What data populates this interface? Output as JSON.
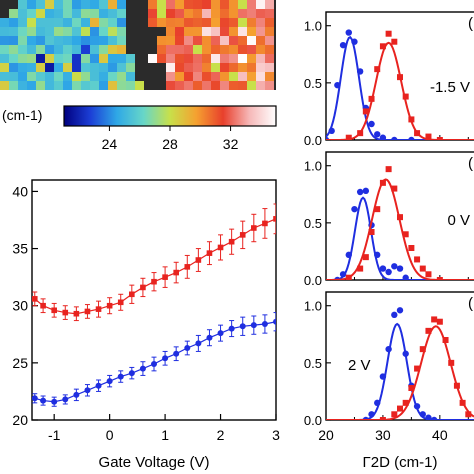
{
  "colorbar": {
    "unit_label": "(cm-1)",
    "ticks": [
      "24",
      "28",
      "32"
    ],
    "tick_values": [
      24,
      28,
      32
    ],
    "range": [
      21,
      35
    ],
    "gradient": [
      "#00007f",
      "#1c3fd6",
      "#2fa8e6",
      "#67d6c8",
      "#c8e04a",
      "#f5a030",
      "#e8402c",
      "#f6b8b8",
      "#ffffff"
    ]
  },
  "colors": {
    "red": "#e8231f",
    "blue": "#1f2ee0",
    "map_bg": "#2b2b2b"
  },
  "chart_data": [
    {
      "type": "line",
      "id": "gate-sweep",
      "xlabel": "Gate Voltage (V)",
      "ylabel": "",
      "xlim": [
        -1.4,
        3
      ],
      "ylim": [
        20,
        41
      ],
      "xticks": [
        "-1",
        "0",
        "1",
        "2",
        "3"
      ],
      "yticks": [
        "20",
        "25",
        "30",
        "35",
        "40"
      ],
      "x": [
        -1.35,
        -1.2,
        -1.0,
        -0.8,
        -0.6,
        -0.4,
        -0.2,
        0.0,
        0.2,
        0.4,
        0.6,
        0.8,
        1.0,
        1.2,
        1.4,
        1.6,
        1.8,
        2.0,
        2.2,
        2.4,
        2.6,
        2.8,
        3.0
      ],
      "series": [
        {
          "color": "red",
          "values": [
            30.6,
            30.0,
            29.6,
            29.4,
            29.3,
            29.5,
            29.7,
            30.0,
            30.3,
            31.0,
            31.6,
            32.1,
            32.5,
            32.9,
            33.4,
            34.0,
            34.6,
            35.1,
            35.6,
            36.2,
            36.8,
            37.2,
            37.6
          ],
          "errors": [
            0.6,
            0.6,
            0.6,
            0.6,
            0.6,
            0.6,
            0.7,
            0.7,
            0.7,
            0.8,
            0.8,
            0.8,
            0.9,
            0.9,
            1.0,
            1.0,
            1.0,
            1.1,
            1.1,
            1.2,
            1.2,
            1.3,
            1.3
          ]
        },
        {
          "color": "blue",
          "values": [
            21.9,
            21.7,
            21.6,
            21.8,
            22.2,
            22.6,
            23.0,
            23.4,
            23.8,
            24.1,
            24.5,
            24.9,
            25.4,
            25.8,
            26.3,
            26.7,
            27.2,
            27.6,
            28.0,
            28.2,
            28.3,
            28.4,
            28.6
          ],
          "errors": [
            0.4,
            0.4,
            0.4,
            0.4,
            0.5,
            0.5,
            0.5,
            0.5,
            0.5,
            0.5,
            0.6,
            0.6,
            0.6,
            0.6,
            0.6,
            0.7,
            0.7,
            0.7,
            0.7,
            0.8,
            0.8,
            0.8,
            0.8
          ]
        }
      ]
    },
    {
      "type": "scatter",
      "id": "hist-neg",
      "annotation": "-1.5 V",
      "panel_tag": "(",
      "xlim": [
        20,
        46
      ],
      "ylim": [
        0,
        1.12
      ],
      "yticks": [
        "0.0",
        "0.5",
        "1.0"
      ],
      "series": [
        {
          "color": "blue",
          "marker": "circle",
          "x": [
            20,
            21,
            22,
            23,
            24,
            25,
            26,
            27,
            28,
            29,
            30,
            32,
            35,
            38
          ],
          "values": [
            0.0,
            0.08,
            0.48,
            0.83,
            0.94,
            0.86,
            0.6,
            0.28,
            0.14,
            0.05,
            0.02,
            0.0,
            0.0,
            0.0
          ],
          "fit": {
            "center": 24.2,
            "width": 1.6,
            "amp": 0.9
          }
        },
        {
          "color": "red",
          "marker": "square",
          "x": [
            24,
            26,
            27,
            28,
            29,
            30,
            31,
            32,
            33,
            34,
            35,
            36,
            38,
            40
          ],
          "values": [
            0.02,
            0.06,
            0.25,
            0.36,
            0.62,
            0.82,
            0.93,
            0.86,
            0.55,
            0.38,
            0.18,
            0.06,
            0.03,
            0.0
          ],
          "fit": {
            "center": 31.0,
            "width": 2.2,
            "amp": 0.85
          }
        }
      ]
    },
    {
      "type": "scatter",
      "id": "hist-zero",
      "annotation": "0 V",
      "panel_tag": "(",
      "xlim": [
        20,
        46
      ],
      "ylim": [
        0,
        1.12
      ],
      "yticks": [
        "0.0",
        "0.5",
        "1.0"
      ],
      "series": [
        {
          "color": "blue",
          "marker": "circle",
          "x": [
            22,
            23,
            24,
            25,
            26,
            27,
            28,
            29,
            30,
            31,
            32,
            33,
            34
          ],
          "values": [
            0.0,
            0.05,
            0.22,
            0.62,
            0.77,
            0.78,
            0.48,
            0.22,
            0.1,
            0.07,
            0.12,
            0.1,
            0.02
          ],
          "fit": {
            "center": 26.5,
            "width": 1.4,
            "amp": 0.72
          }
        },
        {
          "color": "red",
          "marker": "square",
          "x": [
            24,
            26,
            27,
            28,
            29,
            30,
            31,
            32,
            33,
            34,
            35,
            36,
            37,
            38,
            40
          ],
          "values": [
            0.02,
            0.1,
            0.2,
            0.42,
            0.62,
            0.85,
            0.97,
            0.8,
            0.55,
            0.4,
            0.28,
            0.18,
            0.1,
            0.05,
            0.0
          ],
          "fit": {
            "center": 30.5,
            "width": 2.4,
            "amp": 0.88
          }
        }
      ]
    },
    {
      "type": "scatter",
      "id": "hist-pos",
      "annotation": "2 V",
      "panel_tag": "(",
      "xlabel": "Γ2D (cm-1)",
      "xlim": [
        20,
        46
      ],
      "ylim": [
        0,
        1.12
      ],
      "xticks": [
        "20",
        "30",
        "40"
      ],
      "yticks": [
        "0.0",
        "0.5",
        "1.0"
      ],
      "series": [
        {
          "color": "blue",
          "marker": "circle",
          "x": [
            27,
            28,
            29,
            30,
            31,
            32,
            33,
            34,
            35,
            36,
            37,
            38,
            39
          ],
          "values": [
            0.0,
            0.05,
            0.15,
            0.38,
            0.62,
            0.92,
            0.96,
            0.58,
            0.3,
            0.12,
            0.05,
            0.02,
            0.0
          ],
          "fit": {
            "center": 32.5,
            "width": 1.7,
            "amp": 0.84
          }
        },
        {
          "color": "red",
          "marker": "square",
          "x": [
            30,
            32,
            33,
            34,
            35,
            36,
            37,
            38,
            39,
            40,
            41,
            42,
            43,
            44,
            45
          ],
          "values": [
            0.0,
            0.05,
            0.1,
            0.15,
            0.28,
            0.45,
            0.62,
            0.78,
            0.88,
            0.86,
            0.7,
            0.5,
            0.3,
            0.15,
            0.05
          ],
          "fit": {
            "center": 39.3,
            "width": 2.6,
            "amp": 0.82
          }
        }
      ]
    }
  ]
}
